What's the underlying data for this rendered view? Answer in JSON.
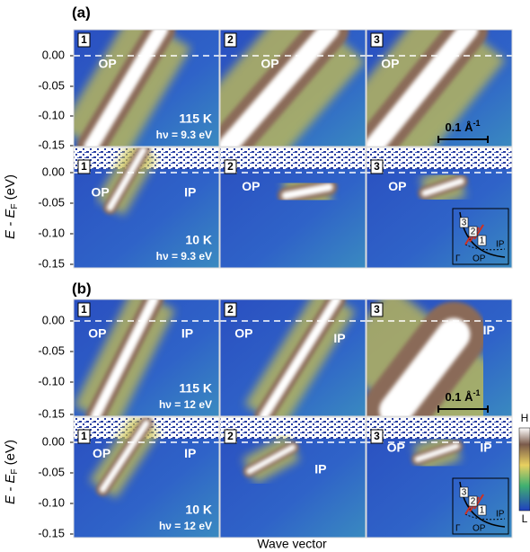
{
  "panels": [
    {
      "label": "(a)",
      "rows": [
        {
          "temperature": "115 K",
          "photon_energy": "hν = 9.3 eV",
          "cuts": [
            {
              "number": "1",
              "labels": [
                "OP"
              ]
            },
            {
              "number": "2",
              "labels": [
                "OP"
              ]
            },
            {
              "number": "3",
              "labels": [
                "OP"
              ]
            }
          ]
        },
        {
          "temperature": "10 K",
          "photon_energy": "hν = 9.3 eV",
          "cuts": [
            {
              "number": "1",
              "labels": [
                "OP",
                "IP"
              ]
            },
            {
              "number": "2",
              "labels": [
                "OP"
              ]
            },
            {
              "number": "3",
              "labels": [
                "OP"
              ]
            }
          ]
        }
      ]
    },
    {
      "label": "(b)",
      "rows": [
        {
          "temperature": "115 K",
          "photon_energy": "hν = 12 eV",
          "cuts": [
            {
              "number": "1",
              "labels": [
                "OP",
                "IP"
              ]
            },
            {
              "number": "2",
              "labels": [
                "OP",
                "IP"
              ]
            },
            {
              "number": "3",
              "labels": [
                "IP"
              ]
            }
          ]
        },
        {
          "temperature": "10 K",
          "photon_energy": "hν = 12 eV",
          "cuts": [
            {
              "number": "1",
              "labels": [
                "OP",
                "IP"
              ]
            },
            {
              "number": "2",
              "labels": [
                "IP"
              ]
            },
            {
              "number": "3",
              "labels": [
                "OP",
                "IP"
              ]
            }
          ]
        }
      ]
    }
  ],
  "yticks": [
    "0.00",
    "-0.05",
    "-0.10",
    "-0.15"
  ],
  "y_axis": {
    "main": "E - E",
    "subscript": "F",
    "unit": " (eV)"
  },
  "x_axis_label": "Wave vector",
  "scale_bar": {
    "text": "0.1 Å",
    "superscript": "-1"
  },
  "inset": {
    "numbers": [
      "3",
      "2",
      "1"
    ],
    "gamma": "Γ",
    "op": "OP",
    "ip": "IP"
  },
  "colorbar": {
    "high": "H",
    "low": "L"
  }
}
